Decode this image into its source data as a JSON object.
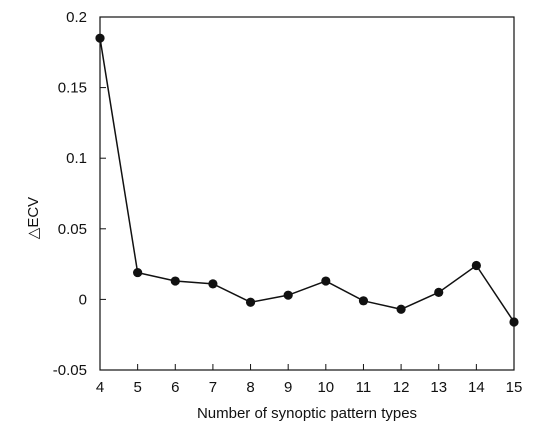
{
  "chart_data": {
    "type": "line",
    "xlabel": "Number of synoptic pattern types",
    "ylabel": "△ECV",
    "xlim": [
      4,
      15
    ],
    "ylim": [
      -0.05,
      0.2
    ],
    "x": [
      4,
      5,
      6,
      7,
      8,
      9,
      10,
      11,
      12,
      13,
      14,
      15
    ],
    "series": [
      {
        "values": [
          0.185,
          0.019,
          0.013,
          0.011,
          -0.002,
          0.003,
          0.013,
          -0.001,
          -0.007,
          0.005,
          0.024,
          -0.016
        ]
      }
    ],
    "xticks": [
      "4",
      "5",
      "6",
      "7",
      "8",
      "9",
      "10",
      "11",
      "12",
      "13",
      "14",
      "15"
    ],
    "yticks": [
      "-0.05",
      "0",
      "0.05",
      "0.1",
      "0.15",
      "0.2"
    ],
    "ytick_values": [
      -0.05,
      0,
      0.05,
      0.1,
      0.15,
      0.2
    ],
    "grid": false,
    "line_color": "#111111",
    "marker_color": "#111111"
  }
}
